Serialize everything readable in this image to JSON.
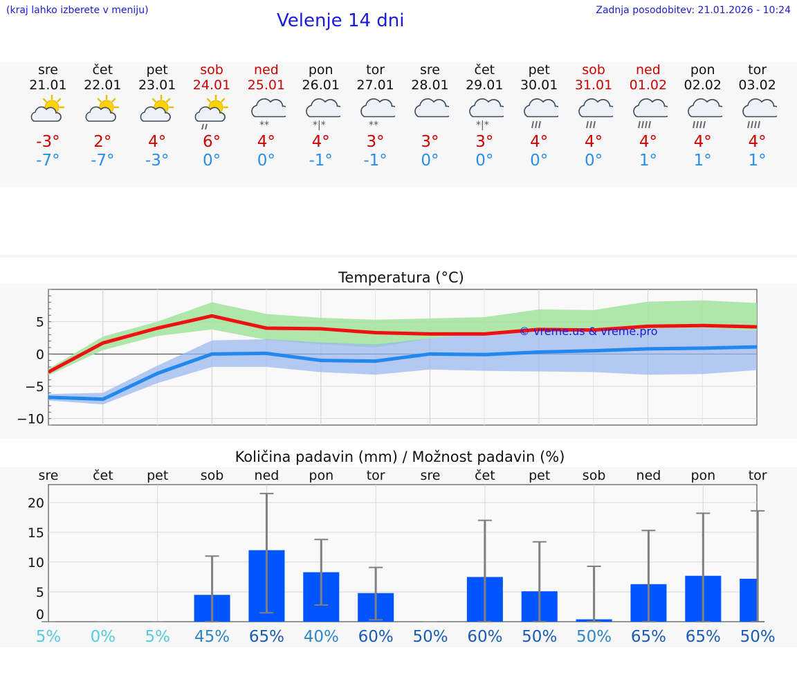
{
  "header": {
    "hint": "(kraj lahko izberete v meniju)",
    "title": "Velenje 14 dni",
    "updated": "Zadnja posodobitev: 21.01.2026 - 10:24"
  },
  "days": [
    {
      "name": "sre",
      "date": "21.01",
      "max": "-3°",
      "min": "-7°",
      "weekend": false,
      "icon": "sun-cloud-icon"
    },
    {
      "name": "čet",
      "date": "22.01",
      "max": "2°",
      "min": "-7°",
      "weekend": false,
      "icon": "sun-cloud-icon"
    },
    {
      "name": "pet",
      "date": "23.01",
      "max": "4°",
      "min": "-3°",
      "weekend": false,
      "icon": "sun-cloud-icon"
    },
    {
      "name": "sob",
      "date": "24.01",
      "max": "6°",
      "min": "0°",
      "weekend": true,
      "icon": "sun-cloud-rain-icon"
    },
    {
      "name": "ned",
      "date": "25.01",
      "max": "4°",
      "min": "0°",
      "weekend": true,
      "icon": "cloud-snow-icon"
    },
    {
      "name": "pon",
      "date": "26.01",
      "max": "4°",
      "min": "-1°",
      "weekend": false,
      "icon": "cloud-sleet-icon"
    },
    {
      "name": "tor",
      "date": "27.01",
      "max": "3°",
      "min": "-1°",
      "weekend": false,
      "icon": "cloud-snow-icon"
    },
    {
      "name": "sre",
      "date": "28.01",
      "max": "3°",
      "min": "0°",
      "weekend": false,
      "icon": "cloud-icon"
    },
    {
      "name": "čet",
      "date": "29.01",
      "max": "3°",
      "min": "0°",
      "weekend": false,
      "icon": "cloud-sleet-icon"
    },
    {
      "name": "pet",
      "date": "30.01",
      "max": "4°",
      "min": "0°",
      "weekend": false,
      "icon": "cloud-rain-icon"
    },
    {
      "name": "sob",
      "date": "31.01",
      "max": "4°",
      "min": "0°",
      "weekend": true,
      "icon": "cloud-rain-icon"
    },
    {
      "name": "ned",
      "date": "01.02",
      "max": "4°",
      "min": "1°",
      "weekend": true,
      "icon": "cloud-heavy-rain-icon"
    },
    {
      "name": "pon",
      "date": "02.02",
      "max": "4°",
      "min": "1°",
      "weekend": false,
      "icon": "cloud-heavy-rain-icon"
    },
    {
      "name": "tor",
      "date": "03.02",
      "max": "4°",
      "min": "1°",
      "weekend": false,
      "icon": "cloud-heavy-rain-icon"
    }
  ],
  "colors": {
    "max_line": "#ee1111",
    "min_line": "#2288ee",
    "max_band": "#a6e3a0",
    "min_band": "#9bb8ee",
    "overlap_band": "#74c6a8",
    "bar": "#0055ff",
    "errorbar": "#808080",
    "max_text": "#cc0000",
    "min_text": "#2a8ee8"
  },
  "chart_data": [
    {
      "type": "line",
      "title": "Temperatura (°C)",
      "watermark": "© vreme.us & vreme.pro",
      "categories": [
        "21.01",
        "22.01",
        "23.01",
        "24.01",
        "25.01",
        "26.01",
        "27.01",
        "28.01",
        "29.01",
        "30.01",
        "31.01",
        "01.02",
        "02.02",
        "03.02"
      ],
      "ylim": [
        -11,
        10
      ],
      "yticks": [
        5,
        0,
        -5,
        -10
      ],
      "ytick_labels": [
        "5",
        "0",
        "−5",
        "−10"
      ],
      "series": [
        {
          "name": "max",
          "values": [
            -2.8,
            1.7,
            4.0,
            5.9,
            4.0,
            3.9,
            3.3,
            3.1,
            3.1,
            3.8,
            3.7,
            4.3,
            4.4,
            4.2
          ],
          "band_low": [
            -3.3,
            0.6,
            2.8,
            3.8,
            2.2,
            1.5,
            1.0,
            2.4,
            3.3,
            3.5,
            3.7,
            3.9,
            4.0,
            3.6
          ],
          "band_high": [
            -2.3,
            2.7,
            5.0,
            8.0,
            6.2,
            5.6,
            5.3,
            5.5,
            5.7,
            6.9,
            6.8,
            8.1,
            8.3,
            7.9
          ]
        },
        {
          "name": "min",
          "values": [
            -6.7,
            -7.0,
            -3.0,
            0.0,
            0.1,
            -1.0,
            -1.1,
            0.0,
            -0.1,
            0.3,
            0.5,
            0.8,
            0.9,
            1.1
          ],
          "band_low": [
            -7.2,
            -7.8,
            -4.5,
            -2.0,
            -2.0,
            -2.8,
            -3.2,
            -2.4,
            -2.6,
            -2.7,
            -2.8,
            -3.2,
            -3.1,
            -2.5
          ],
          "band_high": [
            -6.2,
            -6.0,
            -1.8,
            2.1,
            2.3,
            1.8,
            1.5,
            2.4,
            3.3,
            3.5,
            3.7,
            3.9,
            4.0,
            3.6
          ]
        }
      ]
    },
    {
      "type": "bar",
      "title": "Količina padavin (mm) / Možnost padavin (%)",
      "categories": [
        "sre",
        "čet",
        "pet",
        "sob",
        "ned",
        "pon",
        "tor",
        "sre",
        "čet",
        "pet",
        "sob",
        "ned",
        "pon",
        "tor"
      ],
      "ylim": [
        0,
        23
      ],
      "yticks": [
        20,
        15,
        10,
        5,
        0
      ],
      "ytick_labels": [
        "20",
        "15",
        "10",
        "5",
        "0"
      ],
      "values": [
        0.0,
        0.0,
        0.0,
        4.5,
        12.0,
        8.3,
        4.8,
        0.0,
        7.5,
        5.1,
        0.4,
        6.3,
        7.7,
        7.2
      ],
      "err_low": [
        0.0,
        0.0,
        0.0,
        0.0,
        1.5,
        2.8,
        0.3,
        0.0,
        0.0,
        0.0,
        0.0,
        0.0,
        0.0,
        0.0
      ],
      "err_high": [
        0.0,
        0.0,
        0.0,
        11.0,
        21.5,
        13.8,
        9.1,
        0.0,
        17.0,
        13.4,
        9.3,
        15.3,
        18.2,
        18.6
      ],
      "probability": [
        "5%",
        "0%",
        "5%",
        "45%",
        "65%",
        "40%",
        "60%",
        "50%",
        "60%",
        "50%",
        "50%",
        "65%",
        "65%",
        "50%"
      ],
      "probability_colors": [
        "#55ccdd",
        "#55ccdd",
        "#55ccdd",
        "#2e86c8",
        "#1a5bb5",
        "#2e86c8",
        "#1a5bb5",
        "#1a5bb5",
        "#1a5bb5",
        "#1a5bb5",
        "#2e86c8",
        "#1a5bb5",
        "#1a5bb5",
        "#1a5bb5"
      ]
    }
  ]
}
